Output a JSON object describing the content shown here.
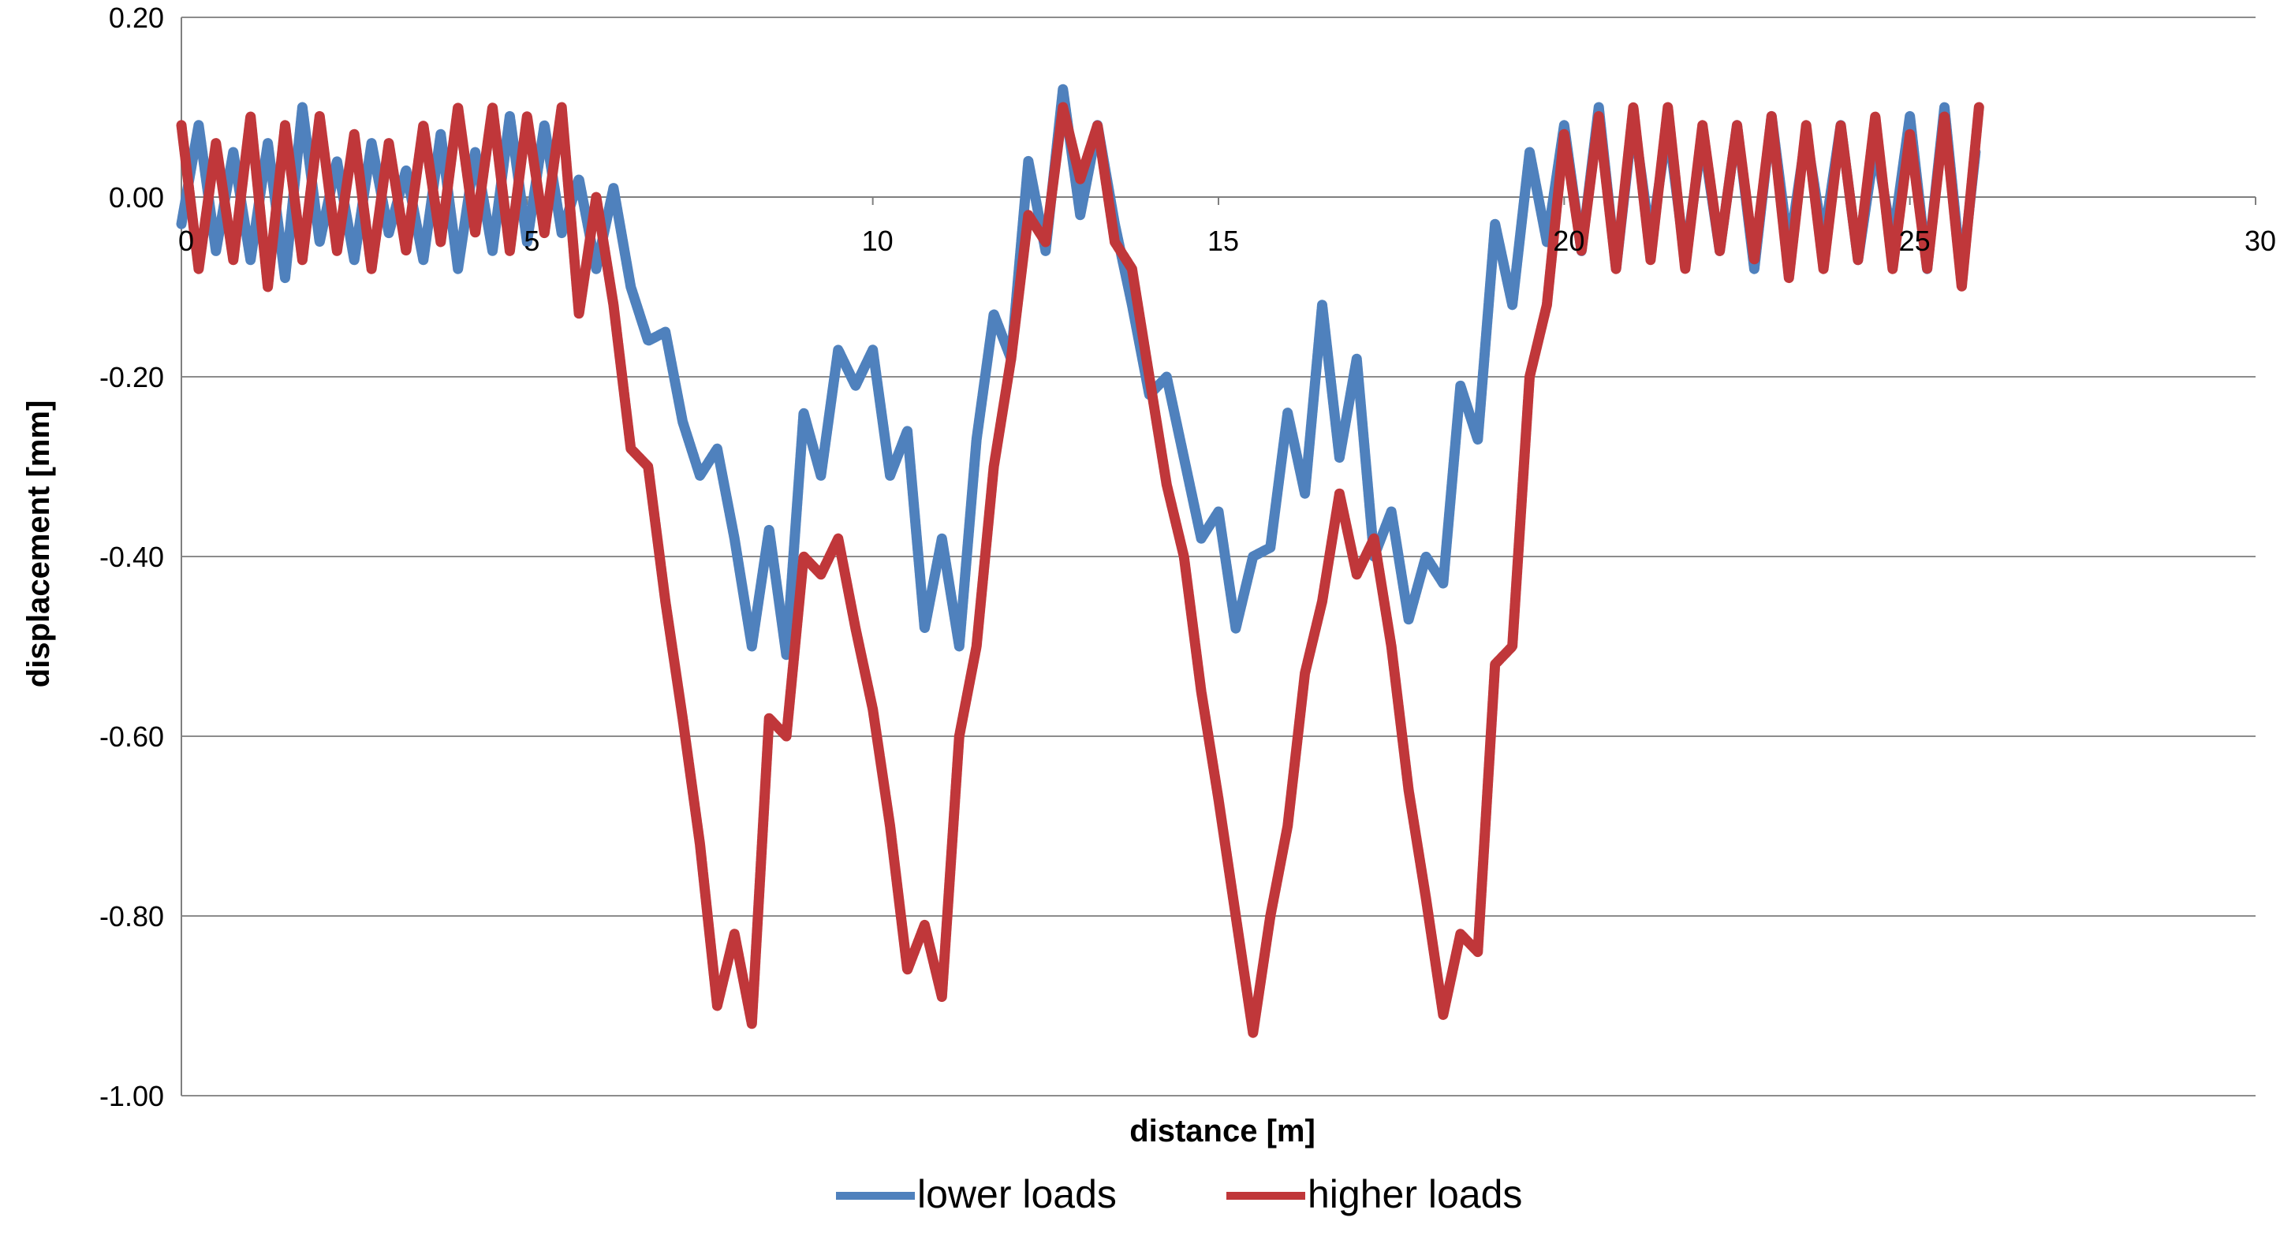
{
  "chart_data": {
    "type": "line",
    "title": "",
    "xlabel": "distance [m]",
    "ylabel": "displacement [mm]",
    "xlim": [
      0,
      30
    ],
    "ylim": [
      -1.0,
      0.2
    ],
    "x_ticks": [
      0,
      5,
      10,
      15,
      20,
      25,
      30
    ],
    "x_tick_labels": [
      "0",
      "5",
      "10",
      "15",
      "20",
      "25",
      "30"
    ],
    "y_ticks": [
      0.2,
      0.0,
      -0.2,
      -0.4,
      -0.6,
      -0.8,
      -1.0
    ],
    "y_tick_labels": [
      "0.20",
      "0.00",
      "-0.20",
      "-0.40",
      "-0.60",
      "-0.80",
      "-1.00"
    ],
    "grid": "horizontal",
    "legend_position": "bottom",
    "series": [
      {
        "name": "lower loads",
        "color": "#4F81BD",
        "x": [
          0,
          0.25,
          0.5,
          0.75,
          1.0,
          1.25,
          1.5,
          1.75,
          2.0,
          2.25,
          2.5,
          2.75,
          3.0,
          3.25,
          3.5,
          3.75,
          4.0,
          4.25,
          4.5,
          4.75,
          5.0,
          5.25,
          5.5,
          5.75,
          6.0,
          6.25,
          6.5,
          6.75,
          7.0,
          7.25,
          7.5,
          7.75,
          8.0,
          8.25,
          8.5,
          8.75,
          9.0,
          9.25,
          9.5,
          9.75,
          10.0,
          10.25,
          10.5,
          10.75,
          11.0,
          11.25,
          11.5,
          11.75,
          12.0,
          12.25,
          12.5,
          12.75,
          13.0,
          13.25,
          13.5,
          13.75,
          14.0,
          14.25,
          14.5,
          14.75,
          15.0,
          15.25,
          15.5,
          15.75,
          16.0,
          16.25,
          16.5,
          16.75,
          17.0,
          17.25,
          17.5,
          17.75,
          18.0,
          18.25,
          18.5,
          18.75,
          19.0,
          19.25,
          19.5,
          19.75,
          20.0,
          20.25,
          20.5,
          20.75,
          21.0,
          21.25,
          21.5,
          21.75,
          22.0,
          22.25,
          22.5,
          22.75,
          23.0,
          23.25,
          23.5,
          23.75,
          24.0,
          24.25,
          24.5,
          24.75,
          25.0,
          25.25,
          25.5,
          25.75,
          25.95
        ],
        "y": [
          -0.03,
          0.08,
          -0.06,
          0.05,
          -0.07,
          0.06,
          -0.09,
          0.1,
          -0.05,
          0.04,
          -0.07,
          0.06,
          -0.04,
          0.03,
          -0.07,
          0.07,
          -0.08,
          0.05,
          -0.06,
          0.09,
          -0.05,
          0.08,
          -0.04,
          0.02,
          -0.08,
          0.01,
          -0.1,
          -0.16,
          -0.15,
          -0.25,
          -0.31,
          -0.28,
          -0.38,
          -0.5,
          -0.37,
          -0.51,
          -0.24,
          -0.31,
          -0.17,
          -0.21,
          -0.17,
          -0.31,
          -0.26,
          -0.48,
          -0.38,
          -0.5,
          -0.27,
          -0.13,
          -0.18,
          0.04,
          -0.06,
          0.12,
          -0.02,
          0.08,
          -0.03,
          -0.12,
          -0.22,
          -0.2,
          -0.29,
          -0.38,
          -0.35,
          -0.48,
          -0.4,
          -0.39,
          -0.24,
          -0.33,
          -0.12,
          -0.29,
          -0.18,
          -0.4,
          -0.35,
          -0.47,
          -0.4,
          -0.43,
          -0.21,
          -0.27,
          -0.03,
          -0.12,
          0.05,
          -0.05,
          0.08,
          -0.06,
          0.1,
          -0.08,
          0.09,
          -0.05,
          0.08,
          -0.07,
          0.07,
          -0.06,
          0.08,
          -0.08,
          0.09,
          -0.06,
          0.07,
          -0.05,
          0.08,
          -0.07,
          0.06,
          -0.05,
          0.09,
          -0.08,
          0.1,
          -0.09,
          0.05
        ]
      },
      {
        "name": "higher loads",
        "color": "#C0373A",
        "x": [
          0,
          0.25,
          0.5,
          0.75,
          1.0,
          1.25,
          1.5,
          1.75,
          2.0,
          2.25,
          2.5,
          2.75,
          3.0,
          3.25,
          3.5,
          3.75,
          4.0,
          4.25,
          4.5,
          4.75,
          5.0,
          5.25,
          5.5,
          5.75,
          6.0,
          6.25,
          6.5,
          6.75,
          7.0,
          7.25,
          7.5,
          7.75,
          8.0,
          8.25,
          8.5,
          8.75,
          9.0,
          9.25,
          9.5,
          9.75,
          10.0,
          10.25,
          10.5,
          10.75,
          11.0,
          11.25,
          11.5,
          11.75,
          12.0,
          12.25,
          12.5,
          12.75,
          13.0,
          13.25,
          13.5,
          13.75,
          14.0,
          14.25,
          14.5,
          14.75,
          15.0,
          15.25,
          15.5,
          15.75,
          16.0,
          16.25,
          16.5,
          16.75,
          17.0,
          17.25,
          17.5,
          17.75,
          18.0,
          18.25,
          18.5,
          18.75,
          19.0,
          19.25,
          19.5,
          19.75,
          20.0,
          20.25,
          20.5,
          20.75,
          21.0,
          21.25,
          21.5,
          21.75,
          22.0,
          22.25,
          22.5,
          22.75,
          23.0,
          23.25,
          23.5,
          23.75,
          24.0,
          24.25,
          24.5,
          24.75,
          25.0,
          25.25,
          25.5,
          25.75,
          26.0
        ],
        "y": [
          0.08,
          -0.08,
          0.06,
          -0.07,
          0.09,
          -0.1,
          0.08,
          -0.07,
          0.09,
          -0.06,
          0.07,
          -0.08,
          0.06,
          -0.06,
          0.08,
          -0.05,
          0.1,
          -0.04,
          0.1,
          -0.06,
          0.09,
          -0.04,
          0.1,
          -0.13,
          0.0,
          -0.12,
          -0.28,
          -0.3,
          -0.45,
          -0.58,
          -0.72,
          -0.9,
          -0.82,
          -0.92,
          -0.58,
          -0.6,
          -0.4,
          -0.42,
          -0.38,
          -0.48,
          -0.57,
          -0.7,
          -0.86,
          -0.81,
          -0.89,
          -0.6,
          -0.5,
          -0.3,
          -0.18,
          -0.02,
          -0.05,
          0.1,
          0.02,
          0.08,
          -0.05,
          -0.08,
          -0.2,
          -0.32,
          -0.4,
          -0.55,
          -0.67,
          -0.8,
          -0.93,
          -0.8,
          -0.7,
          -0.53,
          -0.45,
          -0.33,
          -0.42,
          -0.38,
          -0.5,
          -0.66,
          -0.78,
          -0.91,
          -0.82,
          -0.84,
          -0.52,
          -0.5,
          -0.2,
          -0.12,
          0.07,
          -0.06,
          0.09,
          -0.08,
          0.1,
          -0.07,
          0.1,
          -0.08,
          0.08,
          -0.06,
          0.08,
          -0.07,
          0.09,
          -0.09,
          0.08,
          -0.08,
          0.08,
          -0.07,
          0.09,
          -0.08,
          0.07,
          -0.08,
          0.09,
          -0.1,
          0.1
        ]
      }
    ]
  }
}
